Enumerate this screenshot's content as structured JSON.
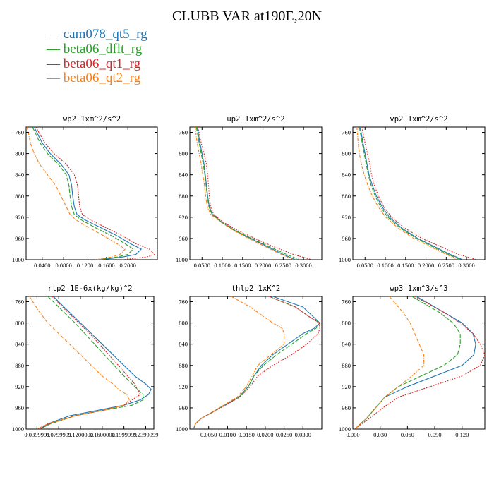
{
  "figure": {
    "title": "CLUBB VAR at190E,20N",
    "legend": [
      {
        "label": "— cam078_qt5_rg",
        "color": "#1f77b4"
      },
      {
        "label": "— beta06_dflt_rg",
        "color": "#2ca02c"
      },
      {
        "label": "— beta06_qt1_rg",
        "color": "#d62728"
      },
      {
        "label": "— beta06_qt2_rg",
        "color": "#ff7f0e"
      }
    ]
  },
  "chart_data": [
    {
      "type": "line",
      "title": "wp2   1xm^2/s^2",
      "xlim": [
        0.01,
        0.255
      ],
      "ylim": [
        1000,
        750
      ],
      "xticks": [
        0.04,
        0.08,
        0.12,
        0.16,
        0.2
      ],
      "xtick_labels": [
        "0.0400",
        "0.0800",
        "0.1200",
        "0.1600",
        "0.2000"
      ],
      "yticks": [
        760,
        800,
        840,
        880,
        920,
        960,
        1000
      ],
      "y": [
        750,
        780,
        800,
        820,
        840,
        860,
        880,
        900,
        915,
        925,
        940,
        955,
        970,
        980,
        990,
        995,
        1000
      ],
      "series": [
        {
          "name": "cam078_qt5_rg",
          "color": "#1f77b4",
          "values": [
            0.025,
            0.04,
            0.055,
            0.075,
            0.09,
            0.095,
            0.097,
            0.1,
            0.105,
            0.12,
            0.15,
            0.18,
            0.205,
            0.225,
            0.215,
            0.19,
            0.15
          ]
        },
        {
          "name": "beta06_dflt_rg",
          "color": "#2ca02c",
          "values": [
            0.022,
            0.036,
            0.05,
            0.07,
            0.085,
            0.09,
            0.092,
            0.095,
            0.1,
            0.113,
            0.14,
            0.17,
            0.195,
            0.21,
            0.2,
            0.18,
            0.145
          ]
        },
        {
          "name": "beta06_qt1_rg",
          "color": "#d62728",
          "values": [
            0.028,
            0.045,
            0.062,
            0.085,
            0.1,
            0.106,
            0.108,
            0.11,
            0.115,
            0.13,
            0.16,
            0.19,
            0.215,
            0.24,
            0.25,
            0.235,
            0.19
          ]
        },
        {
          "name": "beta06_qt2_rg",
          "color": "#ff7f0e",
          "values": [
            0.012,
            0.018,
            0.025,
            0.035,
            0.05,
            0.065,
            0.075,
            0.085,
            0.092,
            0.103,
            0.128,
            0.155,
            0.18,
            0.195,
            0.185,
            0.17,
            0.14
          ]
        }
      ]
    },
    {
      "type": "line",
      "title": "up2   1xm^2/s^2",
      "xlim": [
        0.02,
        0.345
      ],
      "ylim": [
        1000,
        750
      ],
      "xticks": [
        0.05,
        0.1,
        0.15,
        0.2,
        0.25,
        0.3
      ],
      "xtick_labels": [
        "0.0500",
        "0.1000",
        "0.1500",
        "0.2000",
        "0.2500",
        "0.3000"
      ],
      "yticks": [
        760,
        800,
        840,
        880,
        920,
        960,
        1000
      ],
      "y": [
        750,
        780,
        800,
        820,
        840,
        860,
        880,
        900,
        915,
        930,
        945,
        960,
        975,
        990,
        1000
      ],
      "series": [
        {
          "name": "cam078_qt5_rg",
          "color": "#1f77b4",
          "values": [
            0.038,
            0.045,
            0.05,
            0.055,
            0.058,
            0.061,
            0.064,
            0.068,
            0.076,
            0.1,
            0.13,
            0.17,
            0.21,
            0.25,
            0.28
          ]
        },
        {
          "name": "beta06_dflt_rg",
          "color": "#2ca02c",
          "values": [
            0.036,
            0.043,
            0.048,
            0.053,
            0.057,
            0.06,
            0.063,
            0.067,
            0.075,
            0.1,
            0.132,
            0.172,
            0.215,
            0.258,
            0.29
          ]
        },
        {
          "name": "beta06_qt1_rg",
          "color": "#d62728",
          "values": [
            0.04,
            0.048,
            0.055,
            0.061,
            0.064,
            0.066,
            0.068,
            0.071,
            0.079,
            0.104,
            0.138,
            0.18,
            0.225,
            0.275,
            0.32
          ]
        },
        {
          "name": "beta06_qt2_rg",
          "color": "#ff7f0e",
          "values": [
            0.033,
            0.038,
            0.043,
            0.048,
            0.052,
            0.056,
            0.059,
            0.063,
            0.072,
            0.098,
            0.128,
            0.165,
            0.205,
            0.245,
            0.275
          ]
        }
      ]
    },
    {
      "type": "line",
      "title": "vp2   1xm^2/s^2",
      "xlim": [
        0.02,
        0.345
      ],
      "ylim": [
        1000,
        750
      ],
      "xticks": [
        0.05,
        0.1,
        0.15,
        0.2,
        0.25,
        0.3
      ],
      "xtick_labels": [
        "0.0500",
        "0.1000",
        "0.1500",
        "0.2000",
        "0.2500",
        "0.3000"
      ],
      "yticks": [
        760,
        800,
        840,
        880,
        920,
        960,
        1000
      ],
      "y": [
        750,
        780,
        800,
        820,
        840,
        860,
        880,
        900,
        920,
        940,
        960,
        975,
        990,
        1000
      ],
      "series": [
        {
          "name": "cam078_qt5_rg",
          "color": "#1f77b4",
          "values": [
            0.038,
            0.045,
            0.05,
            0.055,
            0.06,
            0.068,
            0.078,
            0.092,
            0.11,
            0.14,
            0.18,
            0.22,
            0.26,
            0.29
          ]
        },
        {
          "name": "beta06_dflt_rg",
          "color": "#2ca02c",
          "values": [
            0.036,
            0.043,
            0.048,
            0.053,
            0.058,
            0.065,
            0.075,
            0.088,
            0.106,
            0.136,
            0.176,
            0.215,
            0.255,
            0.285
          ]
        },
        {
          "name": "beta06_qt1_rg",
          "color": "#d62728",
          "values": [
            0.042,
            0.05,
            0.056,
            0.062,
            0.066,
            0.073,
            0.083,
            0.096,
            0.115,
            0.147,
            0.19,
            0.235,
            0.28,
            0.325
          ]
        },
        {
          "name": "beta06_qt2_rg",
          "color": "#ff7f0e",
          "values": [
            0.03,
            0.033,
            0.036,
            0.041,
            0.048,
            0.057,
            0.068,
            0.082,
            0.101,
            0.131,
            0.17,
            0.21,
            0.25,
            0.28
          ]
        }
      ]
    },
    {
      "type": "line",
      "title": "rtp2   1E-6x(kg/kg)^2",
      "xlim": [
        0.02,
        0.255
      ],
      "ylim": [
        1000,
        750
      ],
      "xticks": [
        0.04,
        0.08,
        0.12,
        0.16,
        0.2,
        0.24
      ],
      "xtick_labels": [
        "0.0399999",
        "0.0799999",
        "0.1200000",
        "0.1600000",
        "0.1999999",
        "0.2399999"
      ],
      "yticks": [
        760,
        800,
        840,
        880,
        920,
        960,
        1000
      ],
      "y": [
        750,
        780,
        800,
        820,
        840,
        860,
        880,
        900,
        915,
        925,
        935,
        945,
        955,
        965,
        975,
        990,
        1000
      ],
      "series": [
        {
          "name": "cam078_qt5_rg",
          "color": "#1f77b4",
          "values": [
            0.07,
            0.1,
            0.12,
            0.14,
            0.16,
            0.18,
            0.2,
            0.22,
            0.24,
            0.25,
            0.245,
            0.23,
            0.2,
            0.15,
            0.1,
            0.06,
            0.045
          ]
        },
        {
          "name": "beta06_dflt_rg",
          "color": "#2ca02c",
          "values": [
            0.06,
            0.09,
            0.11,
            0.128,
            0.146,
            0.164,
            0.182,
            0.2,
            0.215,
            0.225,
            0.235,
            0.235,
            0.215,
            0.16,
            0.11,
            0.065,
            0.045
          ]
        },
        {
          "name": "beta06_qt1_rg",
          "color": "#d62728",
          "values": [
            0.068,
            0.097,
            0.117,
            0.137,
            0.155,
            0.172,
            0.19,
            0.207,
            0.22,
            0.225,
            0.23,
            0.215,
            0.2,
            0.16,
            0.11,
            0.062,
            0.045
          ]
        },
        {
          "name": "beta06_qt2_rg",
          "color": "#ff7f0e",
          "values": [
            0.026,
            0.045,
            0.06,
            0.08,
            0.1,
            0.12,
            0.14,
            0.16,
            0.18,
            0.19,
            0.205,
            0.21,
            0.2,
            0.16,
            0.11,
            0.06,
            0.04
          ]
        }
      ]
    },
    {
      "type": "line",
      "title": "thlp2   1xK^2",
      "xlim": [
        0.0,
        0.035
      ],
      "ylim": [
        1000,
        750
      ],
      "xticks": [
        0.005,
        0.01,
        0.015,
        0.02,
        0.025,
        0.03
      ],
      "xtick_labels": [
        "0.0050",
        "0.0100",
        "0.0150",
        "0.0200",
        "0.0250",
        "0.0300"
      ],
      "yticks": [
        760,
        800,
        840,
        880,
        920,
        960,
        1000
      ],
      "y": [
        750,
        770,
        790,
        800,
        810,
        820,
        840,
        860,
        880,
        900,
        920,
        940,
        960,
        980,
        990,
        1000
      ],
      "series": [
        {
          "name": "cam078_qt5_rg",
          "color": "#1f77b4",
          "values": [
            0.022,
            0.03,
            0.033,
            0.0345,
            0.033,
            0.03,
            0.026,
            0.022,
            0.019,
            0.017,
            0.0155,
            0.013,
            0.008,
            0.003,
            0.0015,
            0.001
          ]
        },
        {
          "name": "beta06_dflt_rg",
          "color": "#2ca02c",
          "values": [
            0.021,
            0.028,
            0.032,
            0.0345,
            0.0335,
            0.031,
            0.027,
            0.023,
            0.0195,
            0.017,
            0.0155,
            0.013,
            0.008,
            0.003,
            0.0015,
            0.001
          ]
        },
        {
          "name": "beta06_qt1_rg",
          "color": "#d62728",
          "values": [
            0.021,
            0.028,
            0.032,
            0.0343,
            0.0345,
            0.034,
            0.031,
            0.027,
            0.022,
            0.018,
            0.016,
            0.0132,
            0.0082,
            0.003,
            0.0015,
            0.001
          ]
        },
        {
          "name": "beta06_qt2_rg",
          "color": "#ff7f0e",
          "values": [
            0.011,
            0.016,
            0.02,
            0.022,
            0.0245,
            0.025,
            0.025,
            0.0215,
            0.018,
            0.0165,
            0.015,
            0.0125,
            0.0078,
            0.003,
            0.0015,
            0.001
          ]
        }
      ]
    },
    {
      "type": "line",
      "title": "wp3   1xm^3/s^3",
      "xlim": [
        0.0,
        0.145
      ],
      "ylim": [
        1000,
        750
      ],
      "xticks": [
        0.0,
        0.03,
        0.06,
        0.09,
        0.12
      ],
      "xtick_labels": [
        "0.000",
        "0.030",
        "0.060",
        "0.090",
        "0.120"
      ],
      "yticks": [
        760,
        800,
        840,
        880,
        920,
        960,
        1000
      ],
      "y": [
        750,
        780,
        800,
        820,
        840,
        860,
        880,
        900,
        920,
        940,
        960,
        980,
        1000
      ],
      "series": [
        {
          "name": "cam078_qt5_rg",
          "color": "#1f77b4",
          "values": [
            0.07,
            0.1,
            0.12,
            0.132,
            0.135,
            0.133,
            0.12,
            0.09,
            0.06,
            0.035,
            0.025,
            0.015,
            0.002
          ]
        },
        {
          "name": "beta06_dflt_rg",
          "color": "#2ca02c",
          "values": [
            0.065,
            0.095,
            0.11,
            0.118,
            0.118,
            0.115,
            0.1,
            0.075,
            0.05,
            0.035,
            0.025,
            0.015,
            0.002
          ]
        },
        {
          "name": "beta06_qt1_rg",
          "color": "#d62728",
          "values": [
            0.068,
            0.1,
            0.118,
            0.132,
            0.14,
            0.145,
            0.14,
            0.12,
            0.085,
            0.05,
            0.033,
            0.018,
            0.002
          ]
        },
        {
          "name": "beta06_qt2_rg",
          "color": "#ff7f0e",
          "values": [
            0.04,
            0.055,
            0.063,
            0.068,
            0.073,
            0.078,
            0.078,
            0.065,
            0.05,
            0.035,
            0.025,
            0.015,
            0.002
          ]
        }
      ]
    }
  ]
}
